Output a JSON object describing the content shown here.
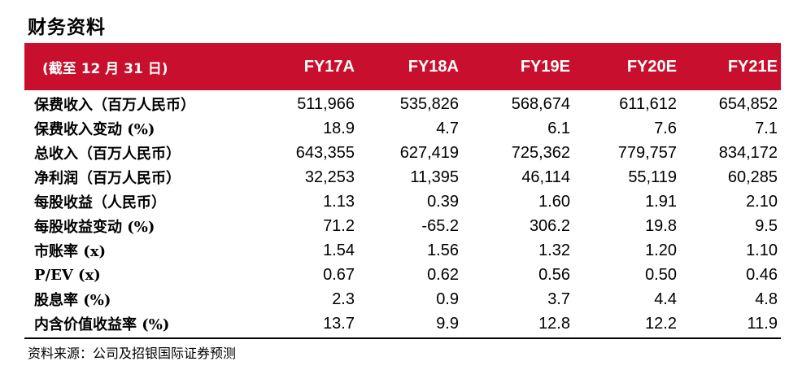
{
  "title": "财务资料",
  "table": {
    "header": [
      "(截至 12 月 31 日)",
      "FY17A",
      "FY18A",
      "FY19E",
      "FY20E",
      "FY21E"
    ],
    "rows": [
      [
        "保费收入（百万人民币）",
        "511,966",
        "535,826",
        "568,674",
        "611,612",
        "654,852"
      ],
      [
        "保费收入变动 (%)",
        "18.9",
        "4.7",
        "6.1",
        "7.6",
        "7.1"
      ],
      [
        "总收入（百万人民币）",
        "643,355",
        "627,419",
        "725,362",
        "779,757",
        "834,172"
      ],
      [
        "净利润（百万人民币）",
        "32,253",
        "11,395",
        "46,114",
        "55,119",
        "60,285"
      ],
      [
        "每股收益（人民币）",
        "1.13",
        "0.39",
        "1.60",
        "1.91",
        "2.10"
      ],
      [
        "每股收益变动 (%)",
        "71.2",
        "-65.2",
        "306.2",
        "19.8",
        "9.5"
      ],
      [
        "市账率 (x)",
        "1.54",
        "1.56",
        "1.32",
        "1.20",
        "1.10"
      ],
      [
        "P/EV (x)",
        "0.67",
        "0.62",
        "0.56",
        "0.50",
        "0.46"
      ],
      [
        "股息率 (%)",
        "2.3",
        "0.9",
        "3.7",
        "4.4",
        "4.8"
      ],
      [
        "内含价值收益率 (%)",
        "13.7",
        "9.9",
        "12.8",
        "12.2",
        "11.9"
      ]
    ]
  },
  "source": "资料来源：公司及招银国际证券预测",
  "colors": {
    "header_bg": "#c8102e",
    "header_text": "#ffffff"
  }
}
